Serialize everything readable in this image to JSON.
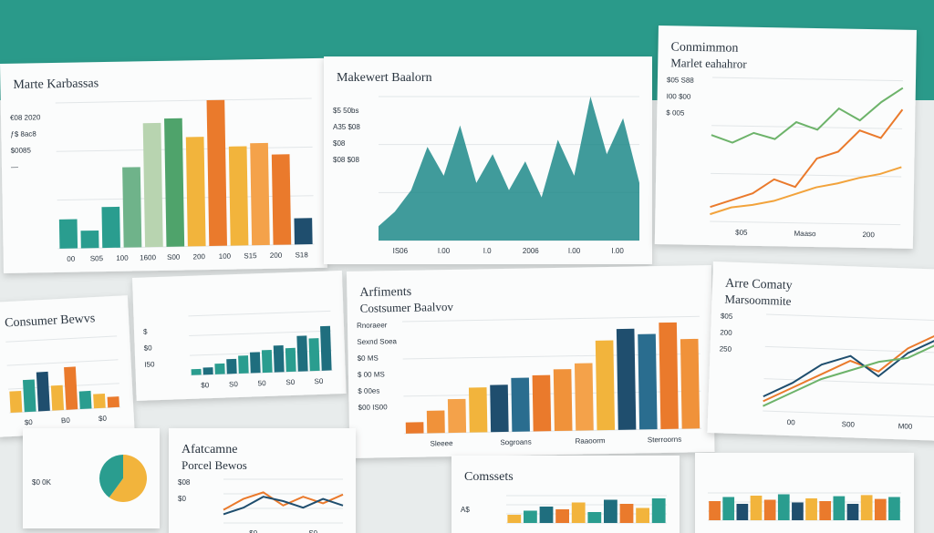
{
  "panels": [
    {
      "kind": "bar",
      "title": "Marte Karbassas",
      "labels": [
        "€08 2020",
        "ƒ$ 8ac8",
        "$0085",
        "—"
      ],
      "xlabels": [
        "00",
        "S05",
        "100",
        "1600",
        "S00",
        "200",
        "100",
        "S15",
        "200",
        "S18"
      ],
      "ylim": [
        0,
        100
      ],
      "colors": [
        "#2a9d8f",
        "#2a9d8f",
        "#2a9d8f",
        "#6fb38a",
        "#b8d4b0",
        "#4fa36b",
        "#f2b43c",
        "#ea7a2c",
        "#f2b43c",
        "#f4a24a",
        "#ea7a2c",
        "#1f4e6e"
      ],
      "values": [
        20,
        12,
        28,
        55,
        85,
        88,
        75,
        100,
        68,
        70,
        62,
        18
      ]
    },
    {
      "kind": "area",
      "title": "Makewert Baalorn",
      "labels": [
        "$5 50bs",
        "A35 $08",
        "$08",
        "$08 $08"
      ],
      "xlabels": [
        "IS06",
        "I.00",
        "I.0",
        "2006",
        "I.00",
        "I.00"
      ],
      "ylim": [
        0,
        100
      ],
      "color": "#1f8a8a",
      "values": [
        10,
        20,
        35,
        65,
        45,
        80,
        40,
        60,
        35,
        55,
        30,
        70,
        45,
        100,
        60,
        85,
        40
      ]
    },
    {
      "kind": "line",
      "title": "Conmimmon",
      "subtitle": "Marlet eahahror",
      "labels": [
        "$05 S88",
        "I00 $00",
        "$ 005"
      ],
      "xlabels": [
        "$05",
        "Maaso",
        "200"
      ],
      "ylim": [
        0,
        100
      ],
      "series": [
        {
          "color": "#6db36a",
          "values": [
            60,
            55,
            62,
            58,
            70,
            65,
            80,
            72,
            85,
            95
          ]
        },
        {
          "color": "#ea7a2c",
          "values": [
            10,
            15,
            20,
            30,
            25,
            45,
            50,
            65,
            60,
            80
          ]
        },
        {
          "color": "#f2a33c",
          "values": [
            5,
            10,
            12,
            15,
            20,
            25,
            28,
            32,
            35,
            40
          ]
        }
      ]
    },
    {
      "kind": "bar",
      "title": "Consumer Bewvs",
      "labels": [],
      "xlabels": [
        "$0",
        "B0",
        "$0"
      ],
      "ylim": [
        0,
        100
      ],
      "colors": [
        "#f2b43c",
        "#2a9d8f",
        "#1f4e6e",
        "#f2b43c",
        "#ea7a2c",
        "#2a9d8f",
        "#f2b43c",
        "#ea7a2c"
      ],
      "values": [
        30,
        45,
        55,
        35,
        60,
        25,
        20,
        15
      ]
    },
    {
      "kind": "bar",
      "title": "",
      "labels": [
        "$",
        "$0",
        "I50"
      ],
      "xlabels": [
        "$0",
        "S0",
        "50",
        "S0",
        "S0"
      ],
      "ylim": [
        0,
        100
      ],
      "colors": [
        "#2a9d8f",
        "#1f6e7e"
      ],
      "values": [
        10,
        12,
        18,
        25,
        30,
        35,
        38,
        45,
        40,
        60,
        55,
        75
      ]
    },
    {
      "kind": "bar",
      "title": "Arfiments",
      "subtitle": "Costsumer Baalvov",
      "labels": [
        "Rnoraeer",
        "Sexnd Soea",
        "$0 MS",
        "$ 00 MS",
        "$ 00es",
        "$00 IS00"
      ],
      "xlabels": [
        "Sleeee",
        "Sogroans",
        "Raaoorm",
        "Sterroorns"
      ],
      "ylim": [
        0,
        100
      ],
      "colors": [
        "#ea7a2c",
        "#f0923a",
        "#f4a24a",
        "#f2b43c",
        "#1f4e6e",
        "#2a6d8f"
      ],
      "values": [
        10,
        20,
        30,
        40,
        42,
        48,
        50,
        55,
        60,
        80,
        90,
        85,
        95,
        80
      ]
    },
    {
      "kind": "line",
      "title": "Arre Comaty",
      "subtitle": "Marsoommite",
      "labels": [
        "$05",
        "200",
        "250"
      ],
      "xlabels": [
        "00",
        "S00",
        "M00"
      ],
      "ylim": [
        0,
        100
      ],
      "series": [
        {
          "color": "#ea7a2c",
          "values": [
            10,
            25,
            40,
            55,
            45,
            70,
            85
          ]
        },
        {
          "color": "#1f4e6e",
          "values": [
            15,
            30,
            50,
            60,
            40,
            65,
            80
          ]
        },
        {
          "color": "#6db36a",
          "values": [
            5,
            20,
            35,
            45,
            55,
            60,
            75
          ]
        }
      ]
    },
    {
      "kind": "line",
      "title": "Afatcamne",
      "subtitle": "Porcel Bewos",
      "labels": [
        "$08",
        "$0"
      ],
      "xlabels": [
        "$0",
        "S0"
      ],
      "ylim": [
        0,
        100
      ],
      "series": [
        {
          "color": "#ea7a2c",
          "values": [
            30,
            55,
            70,
            40,
            60,
            45,
            65
          ]
        },
        {
          "color": "#1f4e6e",
          "values": [
            20,
            35,
            60,
            50,
            35,
            55,
            40
          ]
        }
      ]
    },
    {
      "kind": "bar",
      "title": "Comssets",
      "labels": [
        "A$"
      ],
      "xlabels": [],
      "ylim": [
        0,
        100
      ],
      "colors": [
        "#f2b43c",
        "#2a9d8f",
        "#1f6e7e",
        "#ea7a2c"
      ],
      "values": [
        30,
        45,
        60,
        50,
        75,
        40,
        85,
        70,
        55,
        90
      ]
    },
    {
      "kind": "bar",
      "title": "",
      "labels": [],
      "xlabels": [],
      "ylim": [
        0,
        100
      ],
      "colors": [
        "#ea7a2c",
        "#2a9d8f",
        "#1f4e6e",
        "#f2b43c"
      ],
      "values": [
        70,
        85,
        60,
        90,
        75,
        95,
        65,
        80,
        70,
        88,
        60,
        92,
        78,
        85
      ]
    },
    {
      "kind": "pie",
      "title": "",
      "labels": [
        "$0 0K"
      ],
      "xlabels": [],
      "colors": [
        "#f2b43c",
        "#2a9d8f"
      ],
      "values": [
        60,
        40
      ]
    }
  ]
}
